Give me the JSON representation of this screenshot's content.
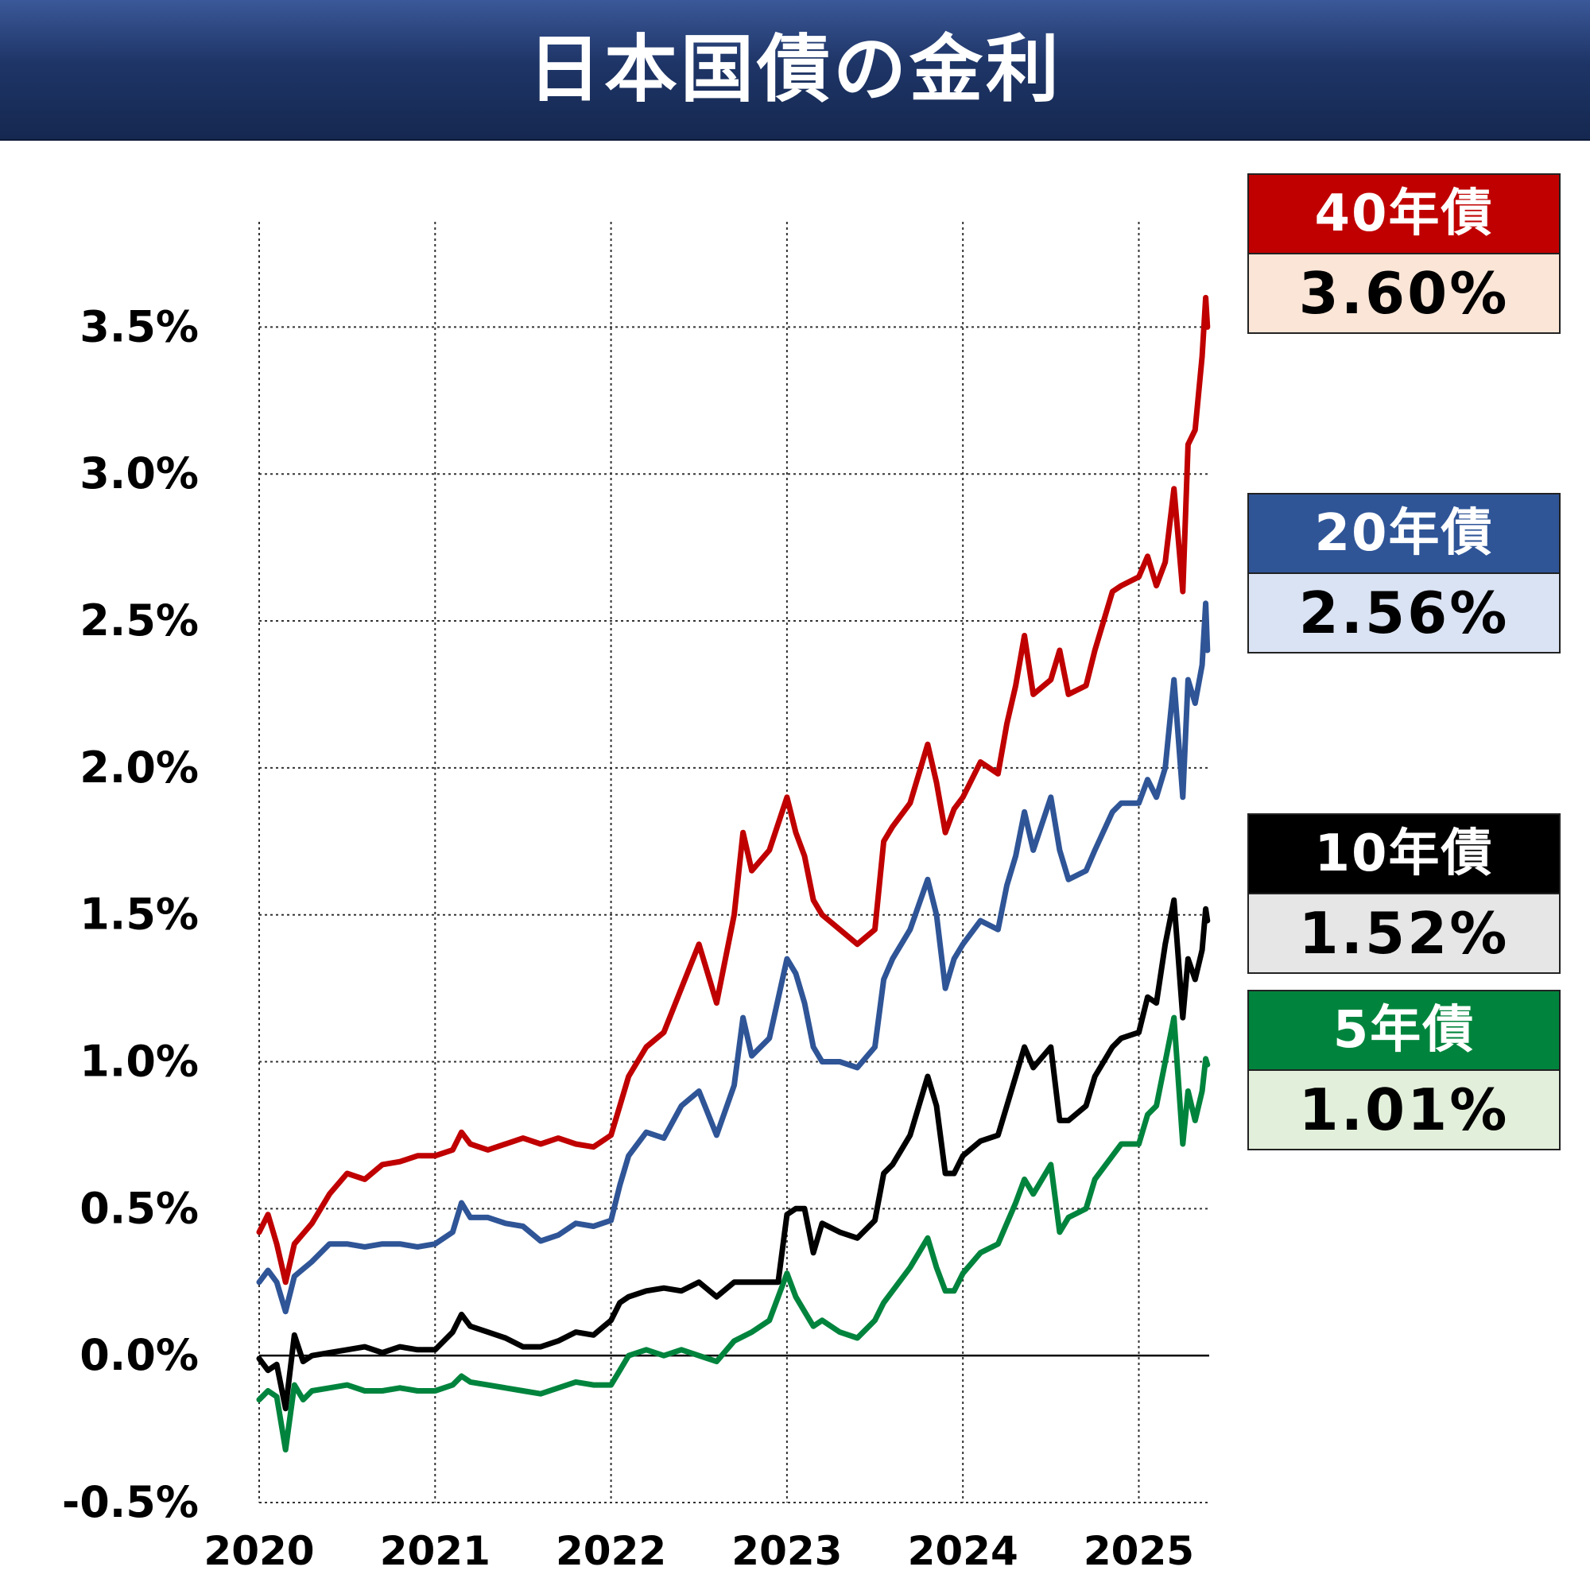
{
  "title": "日本国債の金利",
  "chart_data": {
    "type": "line",
    "x_ticks": [
      "2020",
      "2021",
      "2022",
      "2023",
      "2024",
      "2025"
    ],
    "y_ticks": [
      "-0.5%",
      "0.0%",
      "0.5%",
      "1.0%",
      "1.5%",
      "2.0%",
      "2.5%",
      "3.0%",
      "3.5%"
    ],
    "xlim": [
      2020.0,
      2025.4
    ],
    "ylim": [
      -0.5,
      3.85
    ],
    "grid": true,
    "legend_placement": "right",
    "series": [
      {
        "name": "40年債",
        "latest": "3.60%",
        "color": "#c00000",
        "box_color": "#fbe5d6",
        "points": [
          [
            2020.0,
            0.42
          ],
          [
            2020.05,
            0.48
          ],
          [
            2020.1,
            0.38
          ],
          [
            2020.15,
            0.25
          ],
          [
            2020.2,
            0.38
          ],
          [
            2020.3,
            0.45
          ],
          [
            2020.4,
            0.55
          ],
          [
            2020.5,
            0.62
          ],
          [
            2020.6,
            0.6
          ],
          [
            2020.7,
            0.65
          ],
          [
            2020.8,
            0.66
          ],
          [
            2020.9,
            0.68
          ],
          [
            2021.0,
            0.68
          ],
          [
            2021.1,
            0.7
          ],
          [
            2021.15,
            0.76
          ],
          [
            2021.2,
            0.72
          ],
          [
            2021.3,
            0.7
          ],
          [
            2021.4,
            0.72
          ],
          [
            2021.5,
            0.74
          ],
          [
            2021.6,
            0.72
          ],
          [
            2021.7,
            0.74
          ],
          [
            2021.8,
            0.72
          ],
          [
            2021.9,
            0.71
          ],
          [
            2022.0,
            0.75
          ],
          [
            2022.05,
            0.85
          ],
          [
            2022.1,
            0.95
          ],
          [
            2022.2,
            1.05
          ],
          [
            2022.3,
            1.1
          ],
          [
            2022.4,
            1.25
          ],
          [
            2022.5,
            1.4
          ],
          [
            2022.6,
            1.2
          ],
          [
            2022.7,
            1.5
          ],
          [
            2022.75,
            1.78
          ],
          [
            2022.8,
            1.65
          ],
          [
            2022.9,
            1.72
          ],
          [
            2023.0,
            1.9
          ],
          [
            2023.05,
            1.78
          ],
          [
            2023.1,
            1.7
          ],
          [
            2023.15,
            1.55
          ],
          [
            2023.2,
            1.5
          ],
          [
            2023.3,
            1.45
          ],
          [
            2023.4,
            1.4
          ],
          [
            2023.5,
            1.45
          ],
          [
            2023.55,
            1.75
          ],
          [
            2023.6,
            1.8
          ],
          [
            2023.7,
            1.88
          ],
          [
            2023.8,
            2.08
          ],
          [
            2023.85,
            1.95
          ],
          [
            2023.9,
            1.78
          ],
          [
            2023.95,
            1.86
          ],
          [
            2024.0,
            1.9
          ],
          [
            2024.1,
            2.02
          ],
          [
            2024.2,
            1.98
          ],
          [
            2024.25,
            2.15
          ],
          [
            2024.3,
            2.28
          ],
          [
            2024.35,
            2.45
          ],
          [
            2024.4,
            2.25
          ],
          [
            2024.5,
            2.3
          ],
          [
            2024.55,
            2.4
          ],
          [
            2024.6,
            2.25
          ],
          [
            2024.7,
            2.28
          ],
          [
            2024.75,
            2.4
          ],
          [
            2024.85,
            2.6
          ],
          [
            2024.9,
            2.62
          ],
          [
            2025.0,
            2.65
          ],
          [
            2025.05,
            2.72
          ],
          [
            2025.1,
            2.62
          ],
          [
            2025.15,
            2.7
          ],
          [
            2025.2,
            2.95
          ],
          [
            2025.25,
            2.6
          ],
          [
            2025.28,
            3.1
          ],
          [
            2025.32,
            3.15
          ],
          [
            2025.36,
            3.4
          ],
          [
            2025.38,
            3.6
          ],
          [
            2025.39,
            3.5
          ]
        ]
      },
      {
        "name": "20年債",
        "latest": "2.56%",
        "color": "#2f5597",
        "box_color": "#dae3f3",
        "points": [
          [
            2020.0,
            0.25
          ],
          [
            2020.05,
            0.29
          ],
          [
            2020.1,
            0.25
          ],
          [
            2020.15,
            0.15
          ],
          [
            2020.2,
            0.27
          ],
          [
            2020.3,
            0.32
          ],
          [
            2020.4,
            0.38
          ],
          [
            2020.5,
            0.38
          ],
          [
            2020.6,
            0.37
          ],
          [
            2020.7,
            0.38
          ],
          [
            2020.8,
            0.38
          ],
          [
            2020.9,
            0.37
          ],
          [
            2021.0,
            0.38
          ],
          [
            2021.1,
            0.42
          ],
          [
            2021.15,
            0.52
          ],
          [
            2021.2,
            0.47
          ],
          [
            2021.3,
            0.47
          ],
          [
            2021.4,
            0.45
          ],
          [
            2021.5,
            0.44
          ],
          [
            2021.6,
            0.39
          ],
          [
            2021.7,
            0.41
          ],
          [
            2021.8,
            0.45
          ],
          [
            2021.9,
            0.44
          ],
          [
            2022.0,
            0.46
          ],
          [
            2022.05,
            0.58
          ],
          [
            2022.1,
            0.68
          ],
          [
            2022.2,
            0.76
          ],
          [
            2022.3,
            0.74
          ],
          [
            2022.4,
            0.85
          ],
          [
            2022.5,
            0.9
          ],
          [
            2022.6,
            0.75
          ],
          [
            2022.7,
            0.92
          ],
          [
            2022.75,
            1.15
          ],
          [
            2022.8,
            1.02
          ],
          [
            2022.9,
            1.08
          ],
          [
            2023.0,
            1.35
          ],
          [
            2023.05,
            1.3
          ],
          [
            2023.1,
            1.2
          ],
          [
            2023.15,
            1.05
          ],
          [
            2023.2,
            1.0
          ],
          [
            2023.3,
            1.0
          ],
          [
            2023.4,
            0.98
          ],
          [
            2023.5,
            1.05
          ],
          [
            2023.55,
            1.28
          ],
          [
            2023.6,
            1.35
          ],
          [
            2023.7,
            1.45
          ],
          [
            2023.8,
            1.62
          ],
          [
            2023.85,
            1.5
          ],
          [
            2023.9,
            1.25
          ],
          [
            2023.95,
            1.35
          ],
          [
            2024.0,
            1.4
          ],
          [
            2024.1,
            1.48
          ],
          [
            2024.2,
            1.45
          ],
          [
            2024.25,
            1.6
          ],
          [
            2024.3,
            1.7
          ],
          [
            2024.35,
            1.85
          ],
          [
            2024.4,
            1.72
          ],
          [
            2024.5,
            1.9
          ],
          [
            2024.55,
            1.72
          ],
          [
            2024.6,
            1.62
          ],
          [
            2024.7,
            1.65
          ],
          [
            2024.75,
            1.72
          ],
          [
            2024.85,
            1.85
          ],
          [
            2024.9,
            1.88
          ],
          [
            2025.0,
            1.88
          ],
          [
            2025.05,
            1.96
          ],
          [
            2025.1,
            1.9
          ],
          [
            2025.15,
            2.0
          ],
          [
            2025.2,
            2.3
          ],
          [
            2025.25,
            1.9
          ],
          [
            2025.28,
            2.3
          ],
          [
            2025.32,
            2.22
          ],
          [
            2025.36,
            2.35
          ],
          [
            2025.38,
            2.56
          ],
          [
            2025.39,
            2.4
          ]
        ]
      },
      {
        "name": "10年債",
        "latest": "1.52%",
        "color": "#000000",
        "box_color": "#e7e6e6",
        "points": [
          [
            2020.0,
            -0.01
          ],
          [
            2020.05,
            -0.05
          ],
          [
            2020.1,
            -0.03
          ],
          [
            2020.15,
            -0.18
          ],
          [
            2020.2,
            0.07
          ],
          [
            2020.25,
            -0.02
          ],
          [
            2020.3,
            0.0
          ],
          [
            2020.4,
            0.01
          ],
          [
            2020.5,
            0.02
          ],
          [
            2020.6,
            0.03
          ],
          [
            2020.7,
            0.01
          ],
          [
            2020.8,
            0.03
          ],
          [
            2020.9,
            0.02
          ],
          [
            2021.0,
            0.02
          ],
          [
            2021.1,
            0.08
          ],
          [
            2021.15,
            0.14
          ],
          [
            2021.2,
            0.1
          ],
          [
            2021.3,
            0.08
          ],
          [
            2021.4,
            0.06
          ],
          [
            2021.5,
            0.03
          ],
          [
            2021.6,
            0.03
          ],
          [
            2021.7,
            0.05
          ],
          [
            2021.8,
            0.08
          ],
          [
            2021.9,
            0.07
          ],
          [
            2022.0,
            0.12
          ],
          [
            2022.05,
            0.18
          ],
          [
            2022.1,
            0.2
          ],
          [
            2022.2,
            0.22
          ],
          [
            2022.3,
            0.23
          ],
          [
            2022.4,
            0.22
          ],
          [
            2022.5,
            0.25
          ],
          [
            2022.6,
            0.2
          ],
          [
            2022.7,
            0.25
          ],
          [
            2022.8,
            0.25
          ],
          [
            2022.9,
            0.25
          ],
          [
            2022.95,
            0.25
          ],
          [
            2023.0,
            0.48
          ],
          [
            2023.05,
            0.5
          ],
          [
            2023.1,
            0.5
          ],
          [
            2023.15,
            0.35
          ],
          [
            2023.2,
            0.45
          ],
          [
            2023.3,
            0.42
          ],
          [
            2023.4,
            0.4
          ],
          [
            2023.5,
            0.46
          ],
          [
            2023.55,
            0.62
          ],
          [
            2023.6,
            0.65
          ],
          [
            2023.7,
            0.75
          ],
          [
            2023.8,
            0.95
          ],
          [
            2023.85,
            0.85
          ],
          [
            2023.9,
            0.62
          ],
          [
            2023.95,
            0.62
          ],
          [
            2024.0,
            0.68
          ],
          [
            2024.1,
            0.73
          ],
          [
            2024.2,
            0.75
          ],
          [
            2024.25,
            0.85
          ],
          [
            2024.3,
            0.95
          ],
          [
            2024.35,
            1.05
          ],
          [
            2024.4,
            0.98
          ],
          [
            2024.5,
            1.05
          ],
          [
            2024.55,
            0.8
          ],
          [
            2024.6,
            0.8
          ],
          [
            2024.7,
            0.85
          ],
          [
            2024.75,
            0.95
          ],
          [
            2024.85,
            1.05
          ],
          [
            2024.9,
            1.08
          ],
          [
            2025.0,
            1.1
          ],
          [
            2025.05,
            1.22
          ],
          [
            2025.1,
            1.2
          ],
          [
            2025.15,
            1.4
          ],
          [
            2025.2,
            1.55
          ],
          [
            2025.25,
            1.15
          ],
          [
            2025.28,
            1.35
          ],
          [
            2025.32,
            1.28
          ],
          [
            2025.36,
            1.38
          ],
          [
            2025.38,
            1.52
          ],
          [
            2025.39,
            1.48
          ]
        ]
      },
      {
        "name": "5年債",
        "latest": "1.01%",
        "color": "#00843d",
        "box_color": "#e2efda",
        "points": [
          [
            2020.0,
            -0.15
          ],
          [
            2020.05,
            -0.12
          ],
          [
            2020.1,
            -0.14
          ],
          [
            2020.15,
            -0.32
          ],
          [
            2020.2,
            -0.1
          ],
          [
            2020.25,
            -0.15
          ],
          [
            2020.3,
            -0.12
          ],
          [
            2020.4,
            -0.11
          ],
          [
            2020.5,
            -0.1
          ],
          [
            2020.6,
            -0.12
          ],
          [
            2020.7,
            -0.12
          ],
          [
            2020.8,
            -0.11
          ],
          [
            2020.9,
            -0.12
          ],
          [
            2021.0,
            -0.12
          ],
          [
            2021.1,
            -0.1
          ],
          [
            2021.15,
            -0.07
          ],
          [
            2021.2,
            -0.09
          ],
          [
            2021.3,
            -0.1
          ],
          [
            2021.4,
            -0.11
          ],
          [
            2021.5,
            -0.12
          ],
          [
            2021.6,
            -0.13
          ],
          [
            2021.7,
            -0.11
          ],
          [
            2021.8,
            -0.09
          ],
          [
            2021.9,
            -0.1
          ],
          [
            2022.0,
            -0.1
          ],
          [
            2022.05,
            -0.05
          ],
          [
            2022.1,
            0.0
          ],
          [
            2022.2,
            0.02
          ],
          [
            2022.3,
            0.0
          ],
          [
            2022.4,
            0.02
          ],
          [
            2022.5,
            0.0
          ],
          [
            2022.6,
            -0.02
          ],
          [
            2022.7,
            0.05
          ],
          [
            2022.8,
            0.08
          ],
          [
            2022.9,
            0.12
          ],
          [
            2023.0,
            0.28
          ],
          [
            2023.05,
            0.2
          ],
          [
            2023.1,
            0.15
          ],
          [
            2023.15,
            0.1
          ],
          [
            2023.2,
            0.12
          ],
          [
            2023.3,
            0.08
          ],
          [
            2023.4,
            0.06
          ],
          [
            2023.5,
            0.12
          ],
          [
            2023.55,
            0.18
          ],
          [
            2023.6,
            0.22
          ],
          [
            2023.7,
            0.3
          ],
          [
            2023.8,
            0.4
          ],
          [
            2023.85,
            0.3
          ],
          [
            2023.9,
            0.22
          ],
          [
            2023.95,
            0.22
          ],
          [
            2024.0,
            0.28
          ],
          [
            2024.1,
            0.35
          ],
          [
            2024.2,
            0.38
          ],
          [
            2024.25,
            0.45
          ],
          [
            2024.3,
            0.52
          ],
          [
            2024.35,
            0.6
          ],
          [
            2024.4,
            0.55
          ],
          [
            2024.5,
            0.65
          ],
          [
            2024.55,
            0.42
          ],
          [
            2024.6,
            0.47
          ],
          [
            2024.7,
            0.5
          ],
          [
            2024.75,
            0.6
          ],
          [
            2024.85,
            0.68
          ],
          [
            2024.9,
            0.72
          ],
          [
            2025.0,
            0.72
          ],
          [
            2025.05,
            0.82
          ],
          [
            2025.1,
            0.85
          ],
          [
            2025.15,
            1.0
          ],
          [
            2025.2,
            1.15
          ],
          [
            2025.25,
            0.72
          ],
          [
            2025.28,
            0.9
          ],
          [
            2025.32,
            0.8
          ],
          [
            2025.36,
            0.9
          ],
          [
            2025.38,
            1.01
          ],
          [
            2025.39,
            0.99
          ]
        ]
      }
    ]
  }
}
